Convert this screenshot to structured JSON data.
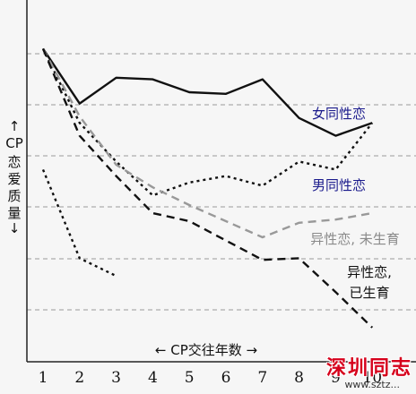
{
  "chart_data": {
    "type": "line",
    "xlabel": "← CP交往年数 →",
    "ylabel": "↑ CP 恋 爱 质 量 ↓",
    "x": [
      1,
      2,
      3,
      4,
      5,
      6,
      7,
      8,
      9,
      10
    ],
    "xlim": [
      0.5,
      10.5
    ],
    "ylim": [
      0,
      10
    ],
    "grid": "horizontal-dashed",
    "series": [
      {
        "name": "女同性恋",
        "style": "solid",
        "color": "#111111",
        "values": [
          9.1,
          7.4,
          8.2,
          8.15,
          7.75,
          7.7,
          8.15,
          6.95,
          6.4,
          6.8
        ]
      },
      {
        "name": "男同性恋",
        "style": "dotted",
        "color": "#111111",
        "values": [
          9.1,
          6.8,
          5.6,
          4.55,
          4.95,
          5.15,
          4.85,
          5.6,
          5.35,
          6.8
        ]
      },
      {
        "name": "异性恋, 未生育",
        "style": "dashed",
        "color": "#999999",
        "values": [
          9.1,
          7.0,
          5.5,
          4.8,
          4.25,
          3.75,
          3.25,
          3.7,
          3.8,
          4.0
        ]
      },
      {
        "name": "异性恋, 已生育",
        "style": "dashed",
        "color": "#111111",
        "values": [
          9.1,
          6.4,
          5.15,
          4.0,
          3.75,
          3.15,
          2.55,
          2.6,
          1.55,
          0.45
        ]
      },
      {
        "name": "",
        "style": "dotted",
        "color": "#111111",
        "x": [
          1,
          2,
          3
        ],
        "values": [
          5.35,
          2.6,
          2.05
        ]
      }
    ],
    "series_labels": [
      "女同性恋",
      "男同性恋",
      "异性恋, 未生育",
      "异性恋,",
      "已生育"
    ],
    "xticks": [
      "1",
      "2",
      "3",
      "4",
      "5",
      "6",
      "7",
      "8",
      "9",
      "10"
    ]
  },
  "watermark": {
    "main": "深圳同志",
    "url": "www.sztz..."
  }
}
